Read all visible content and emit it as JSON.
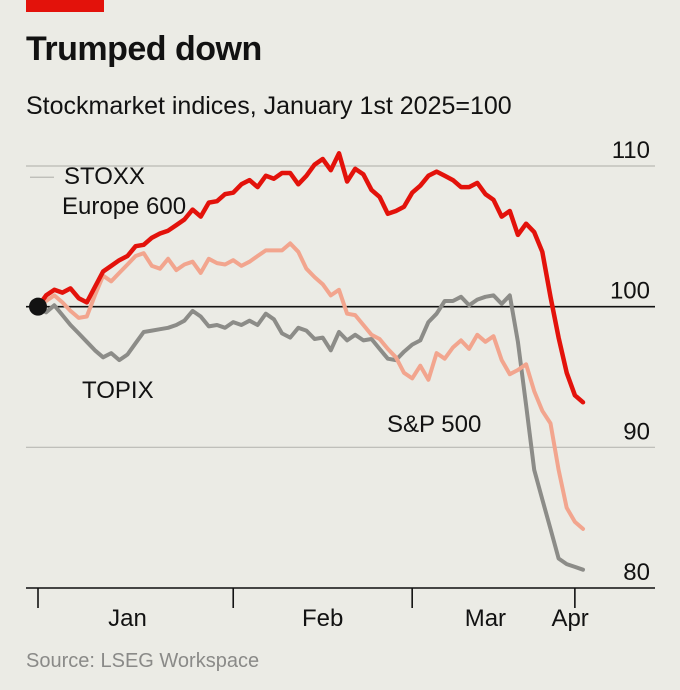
{
  "header": {
    "title": "Trumped down",
    "subtitle": "Stockmarket indices, January 1st 2025=100"
  },
  "footer": {
    "source": "Source: LSEG Workspace"
  },
  "colors": {
    "accent": "#e3120b",
    "stoxx": "#e3120b",
    "sp500": "#f2a58e",
    "topix": "#8c8c88",
    "grid": "#b9b9b3",
    "baseline": "#121212"
  },
  "chart_data": {
    "type": "line",
    "title": "Trumped down",
    "subtitle": "Stockmarket indices, January 1st 2025=100",
    "xlabel": "",
    "ylabel": "",
    "ylim": [
      80,
      110
    ],
    "yticks": [
      80,
      90,
      100,
      110
    ],
    "yticks_label": [
      "80",
      "90",
      "100",
      "110"
    ],
    "xticks": [
      "Jan",
      "Feb",
      "Mar",
      "Apr"
    ],
    "grid": true,
    "legend": "direct-labels",
    "x": [
      0,
      1,
      2,
      3,
      4,
      5,
      6,
      7,
      8,
      9,
      10,
      11,
      12,
      13,
      14,
      15,
      16,
      17,
      18,
      19,
      20,
      21,
      22,
      23,
      24,
      25,
      26,
      27,
      28,
      29,
      30,
      31,
      32,
      33,
      34,
      35,
      36,
      37,
      38,
      39,
      40,
      41,
      42,
      43,
      44,
      45,
      46,
      47,
      48,
      49,
      50,
      51,
      52,
      53,
      54,
      55,
      56,
      57,
      58,
      59,
      60,
      61,
      62,
      63,
      64,
      65,
      66,
      67
    ],
    "series": [
      {
        "name": "STOXX Europe 600",
        "label_lines": [
          "STOXX",
          "Europe 600"
        ],
        "values": [
          100,
          100.8,
          101.2,
          101.0,
          101.3,
          100.6,
          100.3,
          101.4,
          102.5,
          102.9,
          103.3,
          103.6,
          104.3,
          104.4,
          104.9,
          105.2,
          105.4,
          105.8,
          106.2,
          106.9,
          106.4,
          107.4,
          107.5,
          108.0,
          108.1,
          108.7,
          109.0,
          108.5,
          109.3,
          109.1,
          109.5,
          109.5,
          108.7,
          109.3,
          110.1,
          110.5,
          109.7,
          110.9,
          108.9,
          109.8,
          109.4,
          108.3,
          107.8,
          106.6,
          106.8,
          107.1,
          108.1,
          108.6,
          109.3,
          109.6,
          109.3,
          109.0,
          108.5,
          108.5,
          108.8,
          108.0,
          107.6,
          106.4,
          106.8,
          105.1,
          105.9,
          105.3,
          103.9,
          100.7,
          97.8,
          95.3,
          93.7,
          93.2
        ]
      },
      {
        "name": "S&P 500",
        "label_lines": [
          "S&P 500"
        ],
        "values": [
          100,
          100.4,
          100.8,
          100.3,
          99.7,
          99.2,
          99.3,
          100.8,
          102.2,
          101.8,
          102.4,
          103.0,
          103.6,
          103.8,
          102.9,
          102.7,
          103.4,
          102.6,
          103.0,
          103.2,
          102.4,
          103.4,
          103.1,
          103.0,
          103.3,
          102.9,
          103.2,
          103.6,
          104.0,
          104.0,
          104.0,
          104.5,
          103.9,
          102.7,
          102.1,
          101.6,
          100.8,
          101.2,
          99.5,
          99.4,
          98.7,
          98.0,
          97.7,
          97.0,
          96.4,
          95.3,
          94.9,
          95.8,
          94.8,
          96.7,
          96.3,
          97.1,
          97.6,
          97.0,
          98.0,
          97.5,
          97.9,
          96.2,
          95.2,
          95.5,
          95.9,
          94.0,
          92.6,
          91.7,
          88.4,
          85.7,
          84.7,
          84.2
        ]
      },
      {
        "name": "TOPIX",
        "label_lines": [
          "TOPIX"
        ],
        "values": [
          100,
          99.6,
          100.1,
          99.4,
          98.7,
          98.1,
          97.5,
          96.9,
          96.4,
          96.7,
          96.2,
          96.6,
          97.4,
          98.2,
          98.3,
          98.4,
          98.5,
          98.7,
          99.0,
          99.7,
          99.3,
          98.6,
          98.7,
          98.5,
          98.9,
          98.7,
          99.0,
          98.7,
          99.5,
          99.1,
          98.1,
          97.8,
          98.5,
          98.3,
          97.7,
          97.8,
          96.9,
          98.2,
          97.6,
          98.0,
          97.6,
          97.7,
          97.0,
          96.3,
          96.2,
          96.8,
          97.3,
          97.6,
          98.9,
          99.5,
          100.4,
          100.4,
          100.7,
          100.1,
          100.5,
          100.7,
          100.8,
          100.2,
          100.8,
          97.5,
          93.0,
          88.4,
          86.3,
          84.2,
          82.1,
          81.7,
          81.5,
          81.3
        ]
      }
    ]
  }
}
